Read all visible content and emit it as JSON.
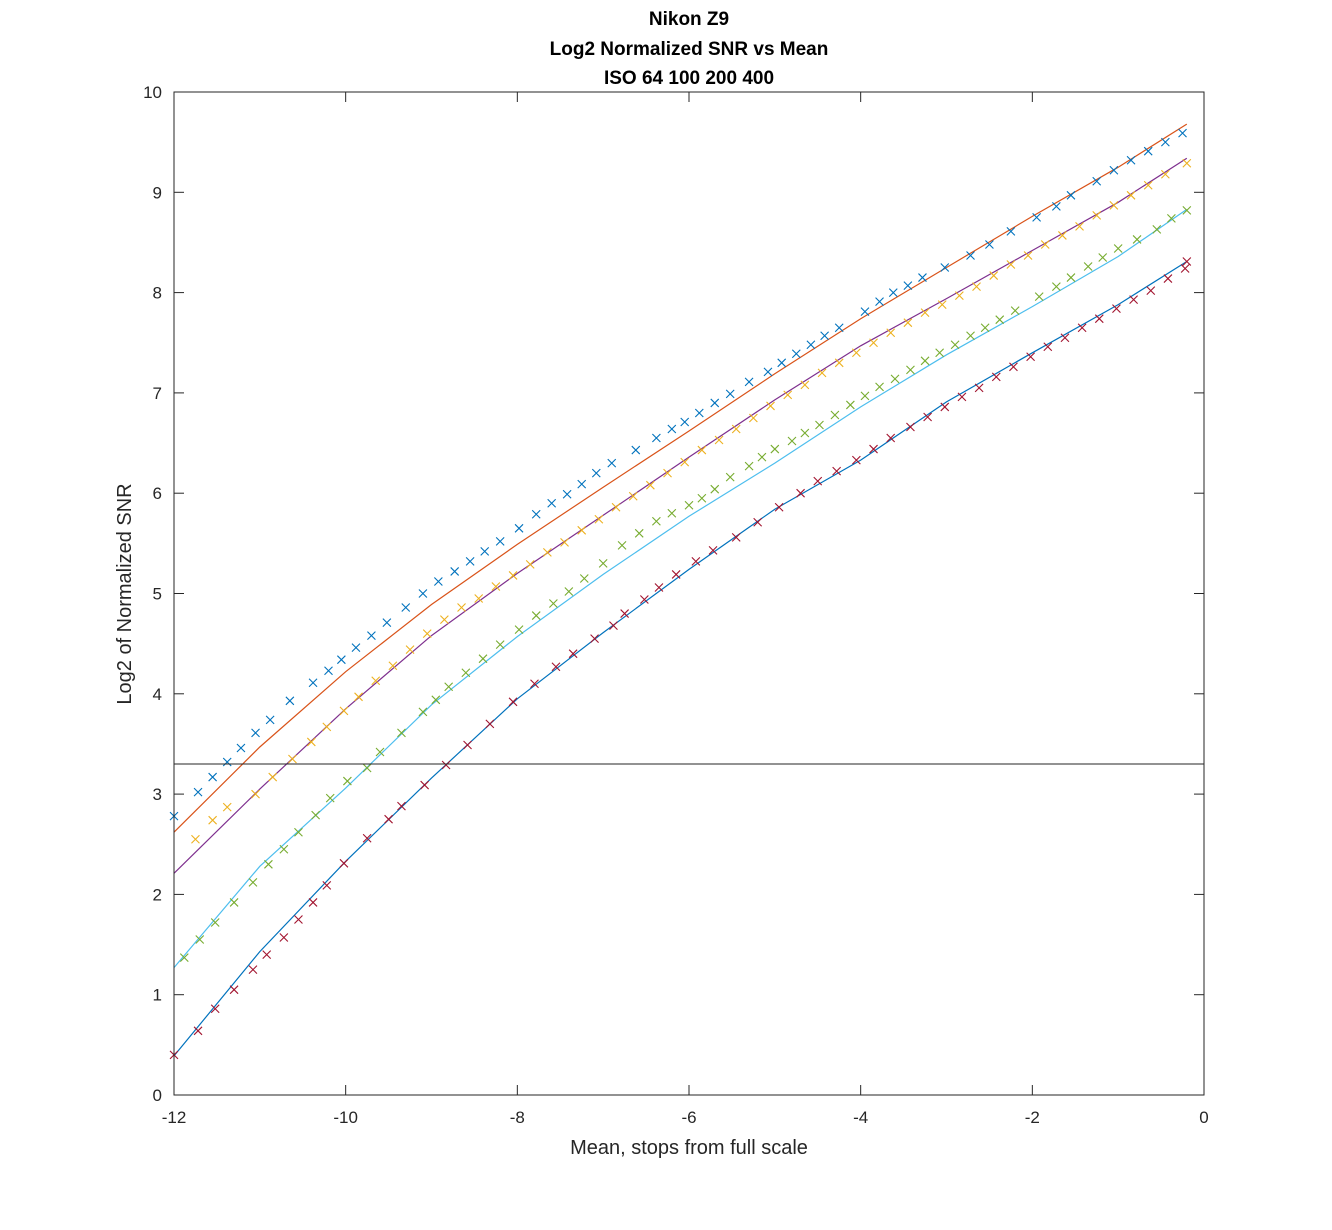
{
  "chart_data": {
    "type": "scatter",
    "title_lines": [
      "Nikon Z9",
      "Log2 Normalized SNR vs Mean",
      "ISO 64  100  200  400"
    ],
    "xlabel": "Mean, stops from full scale",
    "ylabel": "Log2 of Normalized SNR",
    "xlim": [
      -12,
      0
    ],
    "ylim": [
      0,
      10
    ],
    "x_ticks": [
      "-12",
      "-10",
      "-8",
      "-6",
      "-4",
      "-2",
      "0"
    ],
    "y_ticks": [
      "0",
      "1",
      "2",
      "3",
      "4",
      "5",
      "6",
      "7",
      "8",
      "9",
      "10"
    ],
    "reference_line_y": 3.3,
    "grid": false,
    "legend": "none",
    "series": [
      {
        "marker_color": "#0072BD",
        "line_color": "#D95319",
        "fit_points": [
          [
            -12.0,
            2.62
          ],
          [
            -11.0,
            3.47
          ],
          [
            -10.0,
            4.22
          ],
          [
            -9.0,
            4.89
          ],
          [
            -8.0,
            5.49
          ],
          [
            -7.0,
            6.06
          ],
          [
            -6.0,
            6.62
          ],
          [
            -5.0,
            7.19
          ],
          [
            -4.0,
            7.74
          ],
          [
            -3.0,
            8.25
          ],
          [
            -2.0,
            8.76
          ],
          [
            -1.0,
            9.25
          ],
          [
            -0.2,
            9.68
          ]
        ],
        "points": [
          [
            -12.0,
            2.78
          ],
          [
            -11.72,
            3.02
          ],
          [
            -11.55,
            3.17
          ],
          [
            -11.38,
            3.32
          ],
          [
            -11.22,
            3.46
          ],
          [
            -11.05,
            3.61
          ],
          [
            -10.88,
            3.74
          ],
          [
            -10.65,
            3.93
          ],
          [
            -10.38,
            4.11
          ],
          [
            -10.2,
            4.23
          ],
          [
            -10.05,
            4.34
          ],
          [
            -9.88,
            4.46
          ],
          [
            -9.7,
            4.58
          ],
          [
            -9.52,
            4.71
          ],
          [
            -9.3,
            4.86
          ],
          [
            -9.1,
            5.0
          ],
          [
            -8.92,
            5.12
          ],
          [
            -8.73,
            5.22
          ],
          [
            -8.55,
            5.32
          ],
          [
            -8.38,
            5.42
          ],
          [
            -8.2,
            5.52
          ],
          [
            -7.98,
            5.65
          ],
          [
            -7.78,
            5.79
          ],
          [
            -7.6,
            5.9
          ],
          [
            -7.42,
            5.99
          ],
          [
            -7.25,
            6.09
          ],
          [
            -7.08,
            6.2
          ],
          [
            -6.9,
            6.3
          ],
          [
            -6.62,
            6.43
          ],
          [
            -6.38,
            6.55
          ],
          [
            -6.2,
            6.64
          ],
          [
            -6.05,
            6.71
          ],
          [
            -5.88,
            6.8
          ],
          [
            -5.7,
            6.9
          ],
          [
            -5.52,
            6.99
          ],
          [
            -5.3,
            7.11
          ],
          [
            -5.08,
            7.21
          ],
          [
            -4.92,
            7.3
          ],
          [
            -4.75,
            7.39
          ],
          [
            -4.58,
            7.48
          ],
          [
            -4.42,
            7.57
          ],
          [
            -4.25,
            7.65
          ],
          [
            -3.95,
            7.81
          ],
          [
            -3.78,
            7.91
          ],
          [
            -3.62,
            8.0
          ],
          [
            -3.45,
            8.07
          ],
          [
            -3.28,
            8.15
          ],
          [
            -3.02,
            8.25
          ],
          [
            -2.72,
            8.37
          ],
          [
            -2.5,
            8.48
          ],
          [
            -2.25,
            8.61
          ],
          [
            -1.95,
            8.75
          ],
          [
            -1.72,
            8.86
          ],
          [
            -1.55,
            8.97
          ],
          [
            -1.25,
            9.11
          ],
          [
            -1.05,
            9.22
          ],
          [
            -0.85,
            9.32
          ],
          [
            -0.65,
            9.41
          ],
          [
            -0.45,
            9.5
          ],
          [
            -0.25,
            9.59
          ]
        ]
      },
      {
        "marker_color": "#EDB120",
        "line_color": "#7E2F8E",
        "fit_points": [
          [
            -12.0,
            2.21
          ],
          [
            -11.0,
            3.05
          ],
          [
            -10.0,
            3.85
          ],
          [
            -9.0,
            4.58
          ],
          [
            -8.0,
            5.2
          ],
          [
            -7.0,
            5.78
          ],
          [
            -6.0,
            6.36
          ],
          [
            -5.0,
            6.93
          ],
          [
            -4.0,
            7.47
          ],
          [
            -3.0,
            7.94
          ],
          [
            -2.0,
            8.42
          ],
          [
            -1.0,
            8.9
          ],
          [
            -0.2,
            9.34
          ]
        ],
        "points": [
          [
            -11.75,
            2.55
          ],
          [
            -11.55,
            2.74
          ],
          [
            -11.38,
            2.87
          ],
          [
            -11.05,
            3.0
          ],
          [
            -10.85,
            3.17
          ],
          [
            -10.62,
            3.35
          ],
          [
            -10.4,
            3.52
          ],
          [
            -10.22,
            3.67
          ],
          [
            -10.02,
            3.83
          ],
          [
            -9.85,
            3.97
          ],
          [
            -9.65,
            4.13
          ],
          [
            -9.45,
            4.28
          ],
          [
            -9.25,
            4.44
          ],
          [
            -9.05,
            4.6
          ],
          [
            -8.85,
            4.74
          ],
          [
            -8.65,
            4.86
          ],
          [
            -8.45,
            4.95
          ],
          [
            -8.25,
            5.07
          ],
          [
            -8.05,
            5.18
          ],
          [
            -7.85,
            5.29
          ],
          [
            -7.65,
            5.41
          ],
          [
            -7.45,
            5.51
          ],
          [
            -7.25,
            5.63
          ],
          [
            -7.05,
            5.74
          ],
          [
            -6.85,
            5.86
          ],
          [
            -6.65,
            5.97
          ],
          [
            -6.45,
            6.08
          ],
          [
            -6.25,
            6.2
          ],
          [
            -6.05,
            6.31
          ],
          [
            -5.85,
            6.43
          ],
          [
            -5.65,
            6.53
          ],
          [
            -5.45,
            6.64
          ],
          [
            -5.25,
            6.75
          ],
          [
            -5.05,
            6.87
          ],
          [
            -4.85,
            6.98
          ],
          [
            -4.65,
            7.08
          ],
          [
            -4.45,
            7.2
          ],
          [
            -4.25,
            7.3
          ],
          [
            -4.05,
            7.4
          ],
          [
            -3.85,
            7.5
          ],
          [
            -3.65,
            7.6
          ],
          [
            -3.45,
            7.7
          ],
          [
            -3.25,
            7.8
          ],
          [
            -3.05,
            7.88
          ],
          [
            -2.85,
            7.97
          ],
          [
            -2.65,
            8.06
          ],
          [
            -2.45,
            8.17
          ],
          [
            -2.25,
            8.28
          ],
          [
            -2.05,
            8.37
          ],
          [
            -1.85,
            8.48
          ],
          [
            -1.65,
            8.57
          ],
          [
            -1.45,
            8.66
          ],
          [
            -1.25,
            8.77
          ],
          [
            -1.05,
            8.87
          ],
          [
            -0.85,
            8.97
          ],
          [
            -0.65,
            9.07
          ],
          [
            -0.45,
            9.18
          ],
          [
            -0.2,
            9.29
          ]
        ]
      },
      {
        "marker_color": "#77AC30",
        "line_color": "#4DBEEE",
        "fit_points": [
          [
            -12.0,
            1.27
          ],
          [
            -11.0,
            2.28
          ],
          [
            -10.0,
            3.06
          ],
          [
            -9.0,
            3.89
          ],
          [
            -8.0,
            4.57
          ],
          [
            -7.0,
            5.19
          ],
          [
            -6.0,
            5.77
          ],
          [
            -5.0,
            6.3
          ],
          [
            -4.0,
            6.86
          ],
          [
            -3.0,
            7.38
          ],
          [
            -2.0,
            7.86
          ],
          [
            -1.0,
            8.36
          ],
          [
            -0.2,
            8.83
          ]
        ],
        "points": [
          [
            -11.88,
            1.37
          ],
          [
            -11.7,
            1.55
          ],
          [
            -11.52,
            1.72
          ],
          [
            -11.3,
            1.92
          ],
          [
            -11.08,
            2.12
          ],
          [
            -10.9,
            2.3
          ],
          [
            -10.72,
            2.45
          ],
          [
            -10.55,
            2.62
          ],
          [
            -10.35,
            2.79
          ],
          [
            -10.18,
            2.96
          ],
          [
            -9.98,
            3.13
          ],
          [
            -9.75,
            3.26
          ],
          [
            -9.6,
            3.42
          ],
          [
            -9.35,
            3.61
          ],
          [
            -9.1,
            3.82
          ],
          [
            -8.95,
            3.94
          ],
          [
            -8.8,
            4.07
          ],
          [
            -8.6,
            4.21
          ],
          [
            -8.4,
            4.35
          ],
          [
            -8.2,
            4.49
          ],
          [
            -7.98,
            4.64
          ],
          [
            -7.78,
            4.78
          ],
          [
            -7.58,
            4.9
          ],
          [
            -7.4,
            5.02
          ],
          [
            -7.22,
            5.15
          ],
          [
            -7.0,
            5.3
          ],
          [
            -6.78,
            5.48
          ],
          [
            -6.58,
            5.6
          ],
          [
            -6.38,
            5.72
          ],
          [
            -6.2,
            5.8
          ],
          [
            -6.0,
            5.88
          ],
          [
            -5.85,
            5.95
          ],
          [
            -5.7,
            6.04
          ],
          [
            -5.52,
            6.16
          ],
          [
            -5.3,
            6.27
          ],
          [
            -5.15,
            6.36
          ],
          [
            -5.0,
            6.44
          ],
          [
            -4.8,
            6.52
          ],
          [
            -4.65,
            6.6
          ],
          [
            -4.48,
            6.68
          ],
          [
            -4.3,
            6.78
          ],
          [
            -4.12,
            6.88
          ],
          [
            -3.95,
            6.97
          ],
          [
            -3.78,
            7.06
          ],
          [
            -3.6,
            7.14
          ],
          [
            -3.42,
            7.23
          ],
          [
            -3.25,
            7.32
          ],
          [
            -3.08,
            7.4
          ],
          [
            -2.9,
            7.48
          ],
          [
            -2.72,
            7.57
          ],
          [
            -2.55,
            7.65
          ],
          [
            -2.38,
            7.73
          ],
          [
            -2.2,
            7.82
          ],
          [
            -1.92,
            7.96
          ],
          [
            -1.72,
            8.06
          ],
          [
            -1.55,
            8.15
          ],
          [
            -1.35,
            8.26
          ],
          [
            -1.18,
            8.35
          ],
          [
            -1.0,
            8.44
          ],
          [
            -0.78,
            8.53
          ],
          [
            -0.55,
            8.63
          ],
          [
            -0.38,
            8.74
          ],
          [
            -0.2,
            8.82
          ]
        ]
      },
      {
        "marker_color": "#A2142F",
        "line_color": "#0072BD",
        "fit_points": [
          [
            -12.0,
            0.39
          ],
          [
            -11.0,
            1.43
          ],
          [
            -10.0,
            2.33
          ],
          [
            -9.0,
            3.16
          ],
          [
            -8.0,
            3.95
          ],
          [
            -7.0,
            4.61
          ],
          [
            -6.0,
            5.24
          ],
          [
            -5.0,
            5.84
          ],
          [
            -4.0,
            6.33
          ],
          [
            -3.0,
            6.91
          ],
          [
            -2.0,
            7.4
          ],
          [
            -1.0,
            7.88
          ],
          [
            -0.2,
            8.31
          ]
        ],
        "points": [
          [
            -12.0,
            0.4
          ],
          [
            -11.72,
            0.64
          ],
          [
            -11.52,
            0.86
          ],
          [
            -11.3,
            1.05
          ],
          [
            -11.08,
            1.25
          ],
          [
            -10.92,
            1.4
          ],
          [
            -10.72,
            1.57
          ],
          [
            -10.55,
            1.75
          ],
          [
            -10.38,
            1.92
          ],
          [
            -10.22,
            2.09
          ],
          [
            -10.02,
            2.31
          ],
          [
            -9.75,
            2.56
          ],
          [
            -9.5,
            2.75
          ],
          [
            -9.35,
            2.88
          ],
          [
            -9.08,
            3.09
          ],
          [
            -8.83,
            3.29
          ],
          [
            -8.58,
            3.49
          ],
          [
            -8.32,
            3.7
          ],
          [
            -8.05,
            3.92
          ],
          [
            -7.8,
            4.1
          ],
          [
            -7.55,
            4.27
          ],
          [
            -7.35,
            4.4
          ],
          [
            -7.1,
            4.55
          ],
          [
            -6.88,
            4.68
          ],
          [
            -6.75,
            4.8
          ],
          [
            -6.52,
            4.94
          ],
          [
            -6.35,
            5.06
          ],
          [
            -6.15,
            5.19
          ],
          [
            -5.92,
            5.32
          ],
          [
            -5.72,
            5.43
          ],
          [
            -5.45,
            5.56
          ],
          [
            -5.2,
            5.71
          ],
          [
            -4.95,
            5.86
          ],
          [
            -4.7,
            6.0
          ],
          [
            -4.5,
            6.12
          ],
          [
            -4.28,
            6.22
          ],
          [
            -4.05,
            6.33
          ],
          [
            -3.85,
            6.44
          ],
          [
            -3.65,
            6.55
          ],
          [
            -3.42,
            6.66
          ],
          [
            -3.22,
            6.76
          ],
          [
            -3.02,
            6.86
          ],
          [
            -2.82,
            6.96
          ],
          [
            -2.62,
            7.05
          ],
          [
            -2.42,
            7.16
          ],
          [
            -2.22,
            7.26
          ],
          [
            -2.02,
            7.36
          ],
          [
            -1.82,
            7.46
          ],
          [
            -1.62,
            7.55
          ],
          [
            -1.42,
            7.65
          ],
          [
            -1.22,
            7.74
          ],
          [
            -1.02,
            7.84
          ],
          [
            -0.82,
            7.93
          ],
          [
            -0.62,
            8.02
          ],
          [
            -0.42,
            8.14
          ],
          [
            -0.22,
            8.24
          ],
          [
            -0.2,
            8.31
          ]
        ]
      }
    ]
  }
}
